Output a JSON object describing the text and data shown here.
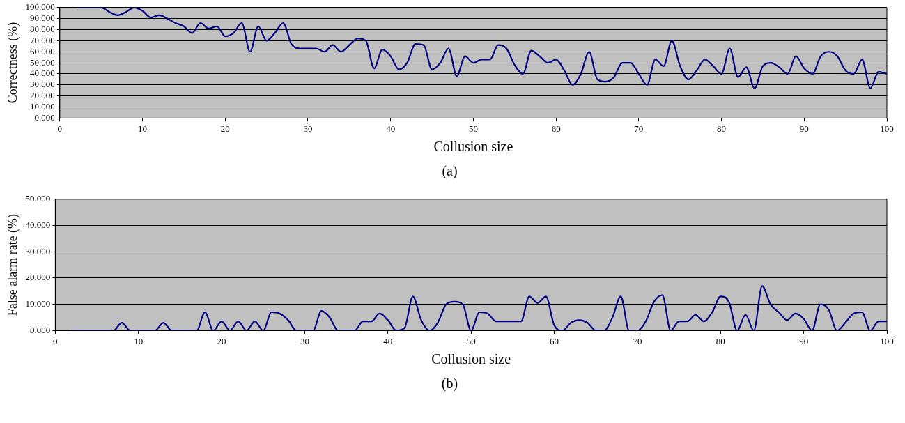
{
  "chart_data": [
    {
      "type": "line",
      "xlabel": "Collusion size",
      "ylabel": "Correctness (%)",
      "annotations": [
        "(a)"
      ],
      "grid": "y",
      "marker": "none",
      "line_style": "solid",
      "legend": false,
      "xlim": [
        0,
        100
      ],
      "xticks": [
        0,
        10,
        20,
        30,
        40,
        50,
        60,
        70,
        80,
        90,
        100
      ],
      "ylim": [
        0,
        100
      ],
      "yticks": [
        {
          "value": 0,
          "label": "0.000"
        },
        {
          "value": 10,
          "label": "10.000"
        },
        {
          "value": 20,
          "label": "20.000"
        },
        {
          "value": 30,
          "label": "30.000"
        },
        {
          "value": 40,
          "label": "40.000"
        },
        {
          "value": 50,
          "label": "50.000"
        },
        {
          "value": 60,
          "label": "60.000"
        },
        {
          "value": 70,
          "label": "70.000"
        },
        {
          "value": 80,
          "label": "80.000"
        },
        {
          "value": 90,
          "label": "90.000"
        },
        {
          "value": 100,
          "label": "100.000"
        }
      ],
      "x": [
        2,
        3,
        4,
        5,
        6,
        7,
        8,
        9,
        10,
        11,
        12,
        13,
        14,
        15,
        16,
        17,
        18,
        19,
        20,
        21,
        22,
        23,
        24,
        25,
        26,
        27,
        28,
        29,
        30,
        31,
        32,
        33,
        34,
        35,
        36,
        37,
        38,
        39,
        40,
        41,
        42,
        43,
        44,
        45,
        46,
        47,
        48,
        49,
        50,
        51,
        52,
        53,
        54,
        55,
        56,
        57,
        58,
        59,
        60,
        61,
        62,
        63,
        64,
        65,
        66,
        67,
        68,
        69,
        70,
        71,
        72,
        73,
        74,
        75,
        76,
        77,
        78,
        79,
        80,
        81,
        82,
        83,
        84,
        85,
        86,
        87,
        88,
        89,
        90,
        91,
        92,
        93,
        94,
        95,
        96,
        97,
        98,
        99,
        100
      ],
      "series": [
        {
          "color": "#000080",
          "values": [
            100,
            100,
            100,
            100,
            96,
            93,
            96,
            100,
            97,
            91,
            93,
            90,
            86,
            83,
            77,
            86,
            81,
            83,
            74,
            77,
            86,
            60,
            83,
            70,
            77,
            86,
            67,
            63,
            63,
            63,
            60,
            66,
            60,
            66,
            72,
            70,
            45,
            62,
            56,
            44,
            50,
            67,
            66,
            44,
            50,
            63,
            38,
            56,
            50,
            53,
            53,
            66,
            63,
            48,
            40,
            61,
            56,
            50,
            53,
            43,
            30,
            40,
            60,
            35,
            33,
            37,
            50,
            50,
            40,
            30,
            53,
            47,
            70,
            47,
            35,
            43,
            53,
            47,
            40,
            63,
            37,
            46,
            27,
            47,
            50,
            46,
            40,
            56,
            45,
            40,
            56,
            60,
            56,
            43,
            40,
            53,
            27,
            42,
            40
          ]
        }
      ]
    },
    {
      "type": "line",
      "xlabel": "Collusion size",
      "ylabel": "False alarm rate (%)",
      "annotations": [
        "(b)"
      ],
      "grid": "y",
      "marker": "none",
      "line_style": "solid",
      "legend": false,
      "xlim": [
        0,
        100
      ],
      "xticks": [
        0,
        10,
        20,
        30,
        40,
        50,
        60,
        70,
        80,
        90,
        100
      ],
      "ylim": [
        0,
        50
      ],
      "yticks": [
        {
          "value": 0,
          "label": "0.000"
        },
        {
          "value": 10,
          "label": "10.000"
        },
        {
          "value": 20,
          "label": "20.000"
        },
        {
          "value": 30,
          "label": "30.000"
        },
        {
          "value": 40,
          "label": "40.000"
        },
        {
          "value": 50,
          "label": "50.000"
        }
      ],
      "x": [
        2,
        3,
        4,
        5,
        6,
        7,
        8,
        9,
        10,
        11,
        12,
        13,
        14,
        15,
        16,
        17,
        18,
        19,
        20,
        21,
        22,
        23,
        24,
        25,
        26,
        27,
        28,
        29,
        30,
        31,
        32,
        33,
        34,
        35,
        36,
        37,
        38,
        39,
        40,
        41,
        42,
        43,
        44,
        45,
        46,
        47,
        48,
        49,
        50,
        51,
        52,
        53,
        54,
        55,
        56,
        57,
        58,
        59,
        60,
        61,
        62,
        63,
        64,
        65,
        66,
        67,
        68,
        69,
        70,
        71,
        72,
        73,
        74,
        75,
        76,
        77,
        78,
        79,
        80,
        81,
        82,
        83,
        84,
        85,
        86,
        87,
        88,
        89,
        90,
        91,
        92,
        93,
        94,
        95,
        96,
        97,
        98,
        99,
        100
      ],
      "series": [
        {
          "color": "#000080",
          "values": [
            0,
            0,
            0,
            0,
            0,
            0,
            3,
            0,
            0,
            0,
            0,
            3,
            0,
            0,
            0,
            0,
            7,
            0,
            3.5,
            0,
            3.5,
            0,
            3.5,
            0,
            7,
            6.5,
            4,
            0,
            0,
            0,
            7.5,
            5,
            0,
            0,
            0,
            3.5,
            3.5,
            6.5,
            4,
            0,
            1,
            13,
            4,
            0,
            3,
            10,
            11,
            10,
            0,
            7,
            6.5,
            3.5,
            3.5,
            3.5,
            3.5,
            13,
            10.5,
            13,
            2,
            0,
            3,
            4,
            3,
            0,
            0,
            5,
            13,
            0,
            0,
            3.5,
            11,
            13.5,
            0,
            3.5,
            3.5,
            6,
            3.5,
            7,
            13,
            11,
            0,
            6,
            0,
            17,
            10,
            7,
            4,
            6.5,
            4.5,
            0,
            10,
            8,
            0,
            3,
            6.5,
            7,
            0,
            3.5,
            3.5
          ]
        }
      ]
    }
  ]
}
